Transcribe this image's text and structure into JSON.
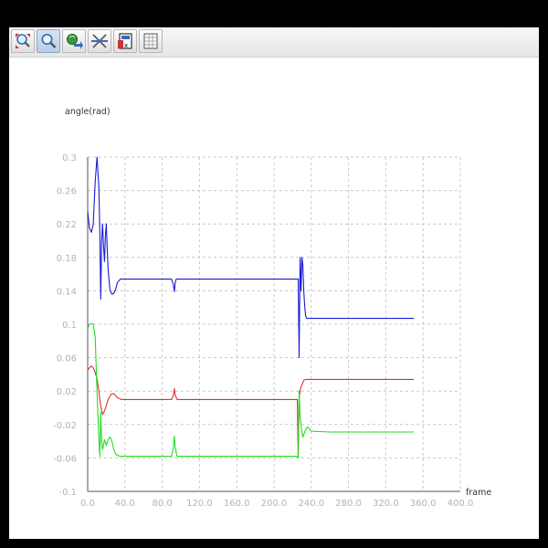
{
  "toolbar": {
    "buttons": [
      {
        "name": "zoom-fit-icon",
        "active": false
      },
      {
        "name": "zoom-icon",
        "active": true
      },
      {
        "name": "pan-icon",
        "active": false
      },
      {
        "name": "split-icon",
        "active": false
      },
      {
        "name": "save-icon",
        "active": false
      },
      {
        "name": "grid-icon",
        "active": false
      }
    ]
  },
  "chart_data": {
    "type": "line",
    "xlabel": "frame",
    "ylabel": "angle(rad)",
    "xlim": [
      0,
      400
    ],
    "ylim": [
      -0.1,
      0.3
    ],
    "x_ticks": [
      "0.0",
      "40.0",
      "80.0",
      "120.0",
      "160.0",
      "200.0",
      "240.0",
      "280.0",
      "320.0",
      "360.0",
      "400.0"
    ],
    "y_ticks": [
      "0.3",
      "0.26",
      "0.22",
      "0.18",
      "0.14",
      "0.1",
      "0.06",
      "0.02",
      "-0.02",
      "-0.06",
      "-0.1"
    ],
    "grid": true,
    "series": [
      {
        "color": "#1a1ad6",
        "x": [
          0,
          2,
          4,
          6,
          8,
          10,
          12,
          13,
          14,
          15,
          16,
          17,
          18,
          19,
          20,
          21,
          22,
          24,
          26,
          28,
          30,
          32,
          35,
          40,
          50,
          60,
          70,
          80,
          90,
          92,
          93,
          94,
          95,
          98,
          110,
          140,
          180,
          220,
          226,
          227,
          228,
          229,
          230,
          231,
          232,
          233,
          234,
          235,
          236,
          238,
          240,
          260,
          300,
          350
        ],
        "y": [
          0.235,
          0.215,
          0.21,
          0.22,
          0.27,
          0.3,
          0.265,
          0.21,
          0.13,
          0.2,
          0.22,
          0.195,
          0.175,
          0.205,
          0.22,
          0.19,
          0.165,
          0.14,
          0.136,
          0.137,
          0.142,
          0.15,
          0.154,
          0.154,
          0.154,
          0.154,
          0.154,
          0.154,
          0.154,
          0.148,
          0.139,
          0.15,
          0.154,
          0.154,
          0.154,
          0.154,
          0.154,
          0.154,
          0.154,
          0.06,
          0.18,
          0.14,
          0.18,
          0.17,
          0.14,
          0.12,
          0.11,
          0.107,
          0.107,
          0.107,
          0.107,
          0.107,
          0.107,
          0.107
        ]
      },
      {
        "color": "#e03030",
        "x": [
          0,
          2,
          4,
          6,
          8,
          10,
          12,
          14,
          16,
          18,
          20,
          22,
          25,
          28,
          32,
          36,
          40,
          60,
          80,
          90,
          92,
          93,
          94,
          96,
          98,
          100,
          140,
          180,
          220,
          225,
          226,
          227,
          228,
          229,
          230,
          232,
          234,
          236,
          240,
          260,
          300,
          350
        ],
        "y": [
          0.045,
          0.048,
          0.05,
          0.048,
          0.042,
          0.035,
          0.02,
          0.002,
          -0.008,
          -0.004,
          0.003,
          0.01,
          0.016,
          0.017,
          0.012,
          0.01,
          0.01,
          0.01,
          0.01,
          0.01,
          0.015,
          0.023,
          0.015,
          0.01,
          0.01,
          0.01,
          0.01,
          0.01,
          0.01,
          0.01,
          -0.06,
          0.012,
          0.02,
          0.025,
          0.027,
          0.033,
          0.034,
          0.034,
          0.034,
          0.034,
          0.034,
          0.034
        ]
      },
      {
        "color": "#22dd22",
        "x": [
          0,
          2,
          4,
          6,
          8,
          10,
          12,
          13,
          14,
          15,
          16,
          17,
          18,
          20,
          22,
          24,
          26,
          28,
          30,
          32,
          35,
          40,
          50,
          60,
          80,
          90,
          92,
          93,
          94,
          96,
          98,
          100,
          140,
          180,
          220,
          225,
          226,
          227,
          228,
          229,
          230,
          231,
          232,
          234,
          236,
          238,
          240,
          260,
          300,
          350
        ],
        "y": [
          0.095,
          0.1,
          0.101,
          0.1,
          0.085,
          0.02,
          -0.035,
          -0.058,
          -0.005,
          -0.04,
          -0.05,
          -0.045,
          -0.038,
          -0.045,
          -0.038,
          -0.035,
          -0.04,
          -0.05,
          -0.055,
          -0.057,
          -0.058,
          -0.058,
          -0.058,
          -0.058,
          -0.058,
          -0.058,
          -0.048,
          -0.034,
          -0.048,
          -0.058,
          -0.058,
          -0.058,
          -0.058,
          -0.058,
          -0.058,
          -0.058,
          -0.06,
          0.02,
          -0.01,
          -0.02,
          -0.03,
          -0.035,
          -0.032,
          -0.026,
          -0.023,
          -0.025,
          -0.028,
          -0.029,
          -0.029,
          -0.029
        ]
      }
    ]
  }
}
